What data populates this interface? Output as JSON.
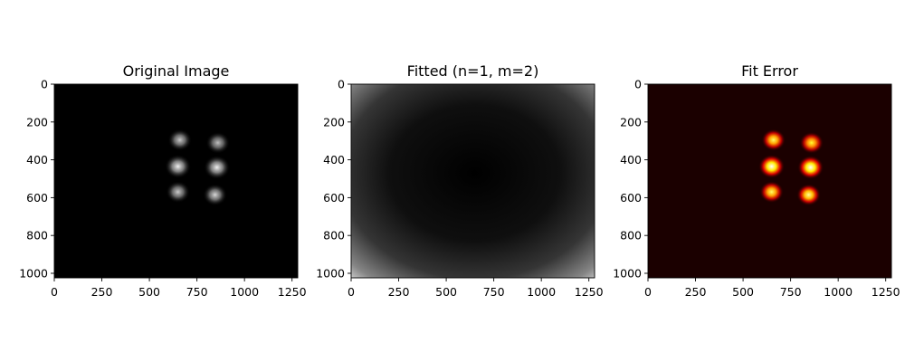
{
  "chart_data": [
    {
      "type": "heatmap",
      "title": "Original Image",
      "colormap": "gray",
      "xlabel": "",
      "ylabel": "",
      "xlim": [
        0,
        1280
      ],
      "ylim": [
        1024,
        0
      ],
      "x_ticks": [
        0,
        250,
        500,
        750,
        1000,
        1250
      ],
      "x_tick_labels": [
        "0",
        "250",
        "500",
        "750",
        "1000",
        "1250"
      ],
      "y_ticks": [
        0,
        200,
        400,
        600,
        800,
        1000
      ],
      "y_tick_labels": [
        "0",
        "200",
        "400",
        "600",
        "800",
        "1000"
      ],
      "features": [
        {
          "x": 660,
          "y": 295,
          "intensity": 0.8,
          "radius": 55
        },
        {
          "x": 860,
          "y": 310,
          "intensity": 0.75,
          "radius": 55
        },
        {
          "x": 650,
          "y": 435,
          "intensity": 0.95,
          "radius": 60
        },
        {
          "x": 855,
          "y": 440,
          "intensity": 0.95,
          "radius": 60
        },
        {
          "x": 650,
          "y": 570,
          "intensity": 0.8,
          "radius": 55
        },
        {
          "x": 845,
          "y": 585,
          "intensity": 0.85,
          "radius": 55
        }
      ]
    },
    {
      "type": "heatmap",
      "title": "Fitted (n=1, m=2)",
      "colormap": "gray",
      "xlabel": "",
      "ylabel": "",
      "xlim": [
        0,
        1280
      ],
      "ylim": [
        1024,
        0
      ],
      "x_ticks": [
        0,
        250,
        500,
        750,
        1000,
        1250
      ],
      "x_tick_labels": [
        "0",
        "250",
        "500",
        "750",
        "1000",
        "1250"
      ],
      "y_ticks": [
        0,
        200,
        400,
        600,
        800,
        1000
      ],
      "y_tick_labels": [
        "0",
        "200",
        "400",
        "600",
        "800",
        "1000"
      ],
      "fit_center": {
        "x": 650,
        "y": 470
      },
      "fit_edge_intensity": 0.95
    },
    {
      "type": "heatmap",
      "title": "Fit Error",
      "colormap": "hot",
      "xlabel": "",
      "ylabel": "",
      "xlim": [
        0,
        1280
      ],
      "ylim": [
        1024,
        0
      ],
      "x_ticks": [
        0,
        250,
        500,
        750,
        1000,
        1250
      ],
      "x_tick_labels": [
        "0",
        "250",
        "500",
        "750",
        "1000",
        "1250"
      ],
      "y_ticks": [
        0,
        200,
        400,
        600,
        800,
        1000
      ],
      "y_tick_labels": [
        "0",
        "200",
        "400",
        "600",
        "800",
        "1000"
      ],
      "features": [
        {
          "x": 660,
          "y": 295,
          "intensity": 0.85,
          "radius": 55
        },
        {
          "x": 860,
          "y": 310,
          "intensity": 0.8,
          "radius": 55
        },
        {
          "x": 650,
          "y": 435,
          "intensity": 1.0,
          "radius": 60
        },
        {
          "x": 855,
          "y": 440,
          "intensity": 1.0,
          "radius": 60
        },
        {
          "x": 650,
          "y": 570,
          "intensity": 0.85,
          "radius": 55
        },
        {
          "x": 845,
          "y": 585,
          "intensity": 0.9,
          "radius": 55
        }
      ]
    }
  ]
}
